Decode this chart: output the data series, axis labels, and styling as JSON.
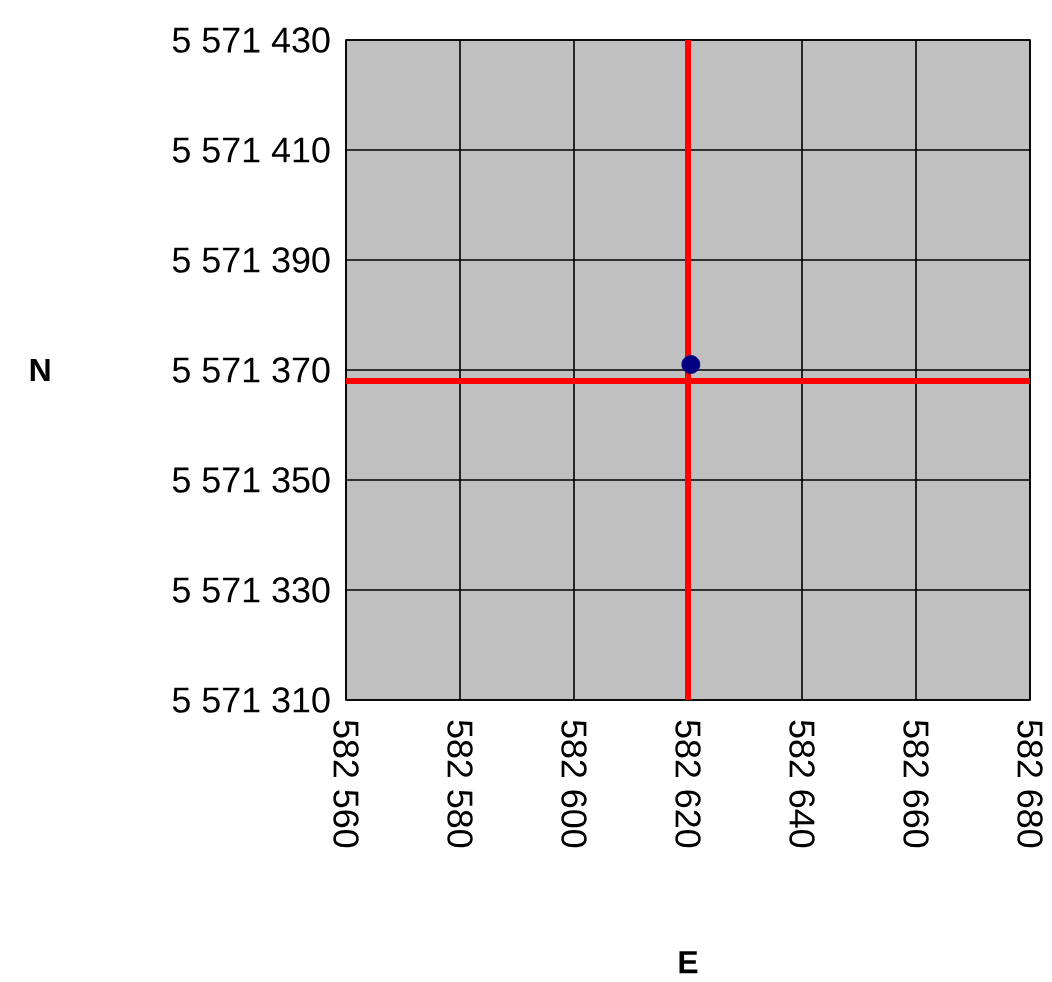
{
  "chart_data": {
    "type": "scatter",
    "xlabel": "E",
    "ylabel": "N",
    "x": [
      582620.5
    ],
    "values": [
      5571371
    ],
    "color": "#000080",
    "xlim": [
      582560,
      582680
    ],
    "ylim": [
      5571310,
      5571430
    ],
    "xticks": [
      {
        "value": 582560,
        "label": "582 560"
      },
      {
        "value": 582580,
        "label": "582 580"
      },
      {
        "value": 582600,
        "label": "582 600"
      },
      {
        "value": 582620,
        "label": "582 620"
      },
      {
        "value": 582640,
        "label": "582 640"
      },
      {
        "value": 582660,
        "label": "582 660"
      },
      {
        "value": 582680,
        "label": "582 680"
      }
    ],
    "yticks": [
      {
        "value": 5571310,
        "label": "5 571 310"
      },
      {
        "value": 5571330,
        "label": "5 571 330"
      },
      {
        "value": 5571350,
        "label": "5 571 350"
      },
      {
        "value": 5571370,
        "label": "5 571 370"
      },
      {
        "value": 5571390,
        "label": "5 571 390"
      },
      {
        "value": 5571410,
        "label": "5 571 410"
      },
      {
        "value": 5571430,
        "label": "5 571 430"
      }
    ],
    "ref_lines": [
      {
        "axis": "x",
        "value": 582620,
        "color": "#ff0000"
      },
      {
        "axis": "y",
        "value": 5571368,
        "color": "#ff0000"
      }
    ],
    "grid": true
  }
}
